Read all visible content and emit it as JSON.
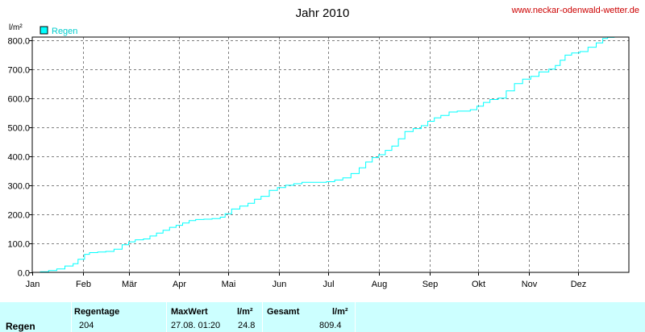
{
  "header": {
    "title": "Jahr 2010",
    "website": "www.neckar-odenwald-wetter.de"
  },
  "chart_data": {
    "type": "line",
    "ylabel": "l/m²",
    "ylim": [
      0,
      810
    ],
    "yticks": [
      "0.0",
      "100.0",
      "200.0",
      "300.0",
      "400.0",
      "500.0",
      "600.0",
      "700.0",
      "800.0"
    ],
    "xlim": [
      0,
      365
    ],
    "month_ticks": [
      "Jan",
      "Feb",
      "Mär",
      "Apr",
      "Mai",
      "Jun",
      "Jul",
      "Aug",
      "Sep",
      "Okt",
      "Nov",
      "Dez"
    ],
    "grid": true,
    "legend_position": "top-left",
    "series": [
      {
        "name": "Regen",
        "color": "#00ffff",
        "points": [
          [
            0,
            0
          ],
          [
            5,
            2
          ],
          [
            10,
            6
          ],
          [
            15,
            12
          ],
          [
            20,
            22
          ],
          [
            25,
            30
          ],
          [
            28,
            45
          ],
          [
            32,
            62
          ],
          [
            35,
            68
          ],
          [
            40,
            70
          ],
          [
            45,
            72
          ],
          [
            50,
            80
          ],
          [
            55,
            95
          ],
          [
            59,
            105
          ],
          [
            63,
            112
          ],
          [
            68,
            115
          ],
          [
            72,
            125
          ],
          [
            76,
            135
          ],
          [
            80,
            145
          ],
          [
            84,
            155
          ],
          [
            88,
            162
          ],
          [
            92,
            170
          ],
          [
            96,
            178
          ],
          [
            100,
            182
          ],
          [
            105,
            183
          ],
          [
            110,
            185
          ],
          [
            115,
            190
          ],
          [
            118,
            202
          ],
          [
            122,
            218
          ],
          [
            127,
            228
          ],
          [
            132,
            238
          ],
          [
            136,
            252
          ],
          [
            140,
            262
          ],
          [
            145,
            282
          ],
          [
            150,
            292
          ],
          [
            155,
            300
          ],
          [
            160,
            305
          ],
          [
            165,
            310
          ],
          [
            170,
            310
          ],
          [
            175,
            310
          ],
          [
            180,
            312
          ],
          [
            185,
            318
          ],
          [
            190,
            325
          ],
          [
            195,
            340
          ],
          [
            200,
            360
          ],
          [
            204,
            380
          ],
          [
            208,
            395
          ],
          [
            212,
            405
          ],
          [
            216,
            420
          ],
          [
            220,
            435
          ],
          [
            224,
            460
          ],
          [
            228,
            485
          ],
          [
            233,
            495
          ],
          [
            238,
            505
          ],
          [
            242,
            520
          ],
          [
            246,
            532
          ],
          [
            250,
            540
          ],
          [
            255,
            552
          ],
          [
            260,
            555
          ],
          [
            265,
            555
          ],
          [
            268,
            560
          ],
          [
            272,
            572
          ],
          [
            276,
            585
          ],
          [
            280,
            595
          ],
          [
            285,
            600
          ],
          [
            290,
            625
          ],
          [
            295,
            650
          ],
          [
            300,
            665
          ],
          [
            305,
            675
          ],
          [
            310,
            690
          ],
          [
            316,
            700
          ],
          [
            320,
            712
          ],
          [
            323,
            730
          ],
          [
            326,
            748
          ],
          [
            330,
            755
          ],
          [
            335,
            760
          ],
          [
            340,
            775
          ],
          [
            345,
            790
          ],
          [
            349,
            805
          ],
          [
            352,
            809
          ],
          [
            356,
            809.4
          ]
        ]
      }
    ]
  },
  "summary": {
    "row_label": "Regen",
    "headers": {
      "regentage": "Regentage",
      "maxwert": "MaxWert",
      "unit1": "l/m²",
      "gesamt": "Gesamt",
      "unit2": "l/m²"
    },
    "values": {
      "regentage": "204",
      "max_datetime": "27.08.  01:20",
      "max_value": "24.8",
      "gesamt": "809.4"
    }
  }
}
